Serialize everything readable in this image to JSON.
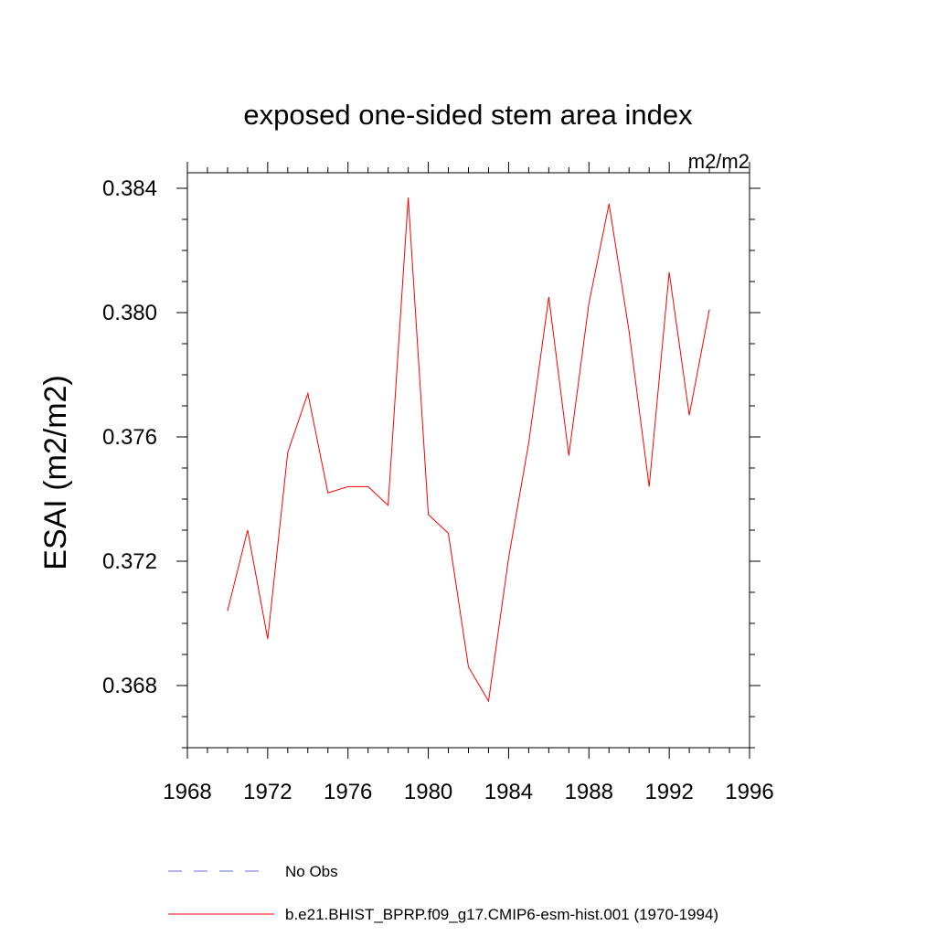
{
  "chart_data": {
    "type": "line",
    "title": "exposed one-sided stem area index",
    "units": "m2/m2",
    "xlabel": "",
    "ylabel": "ESAI  (m2/m2)",
    "xlim": [
      1968,
      1996
    ],
    "ylim": [
      0.366,
      0.3845
    ],
    "x_ticks": [
      1968,
      1972,
      1976,
      1980,
      1984,
      1988,
      1992,
      1996
    ],
    "x_tick_labels": [
      "1968",
      "1972",
      "1976",
      "1980",
      "1984",
      "1988",
      "1992",
      "1996"
    ],
    "y_ticks": [
      0.368,
      0.372,
      0.376,
      0.38,
      0.384
    ],
    "y_tick_labels": [
      "0.368",
      "0.372",
      "0.376",
      "0.380",
      "0.384"
    ],
    "grid": false,
    "series": [
      {
        "name": "b.e21.BHIST_BPRP.f09_g17.CMIP6-esm-hist.001 (1970-1994)",
        "color": "#ff0000",
        "style": "solid",
        "x": [
          1970,
          1971,
          1972,
          1973,
          1974,
          1975,
          1976,
          1977,
          1978,
          1979,
          1980,
          1981,
          1982,
          1983,
          1984,
          1985,
          1986,
          1987,
          1988,
          1989,
          1990,
          1991,
          1992,
          1993,
          1994
        ],
        "values": [
          0.3704,
          0.373,
          0.3695,
          0.3755,
          0.3774,
          0.3742,
          0.3744,
          0.3744,
          0.3738,
          0.3837,
          0.3735,
          0.3729,
          0.3686,
          0.3675,
          0.3721,
          0.3758,
          0.3805,
          0.3754,
          0.3803,
          0.3835,
          0.3794,
          0.3744,
          0.3813,
          0.3767,
          0.3801
        ]
      }
    ],
    "legend": {
      "placement": "bottom",
      "entries": [
        {
          "label": "No Obs",
          "color": "#6b6bd6",
          "style": "dashed"
        },
        {
          "label": "b.e21.BHIST_BPRP.f09_g17.CMIP6-esm-hist.001 (1970-1994)",
          "color": "#ff0000",
          "style": "solid"
        }
      ]
    }
  }
}
